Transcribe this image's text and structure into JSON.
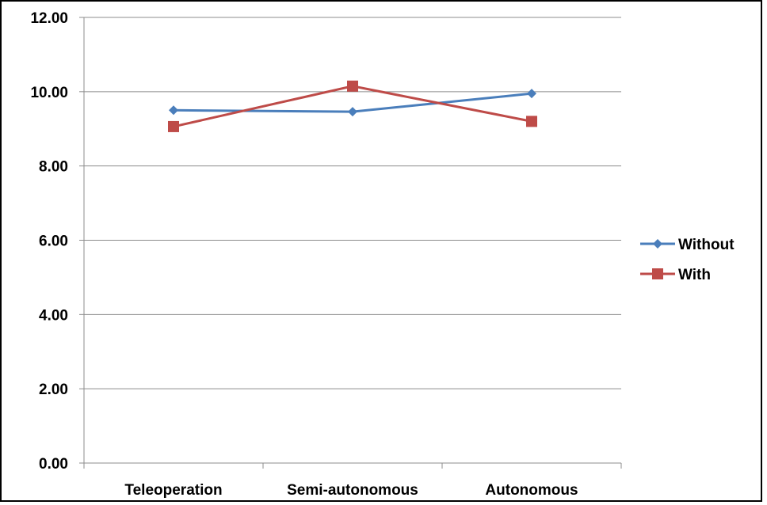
{
  "chart_data": {
    "type": "line",
    "categories": [
      "Teleoperation",
      "Semi-autonomous",
      "Autonomous"
    ],
    "series": [
      {
        "name": "Without",
        "values": [
          9.5,
          9.46,
          9.95
        ],
        "color": "#4a7ebb",
        "marker": "diamond"
      },
      {
        "name": "With",
        "values": [
          9.06,
          10.15,
          9.2
        ],
        "color": "#be4b48",
        "marker": "square"
      }
    ],
    "ylim": [
      0,
      12
    ],
    "yticks": [
      "0.00",
      "2.00",
      "4.00",
      "6.00",
      "8.00",
      "10.00",
      "12.00"
    ],
    "grid": true,
    "legend_position": "right",
    "title": "",
    "xlabel": "",
    "ylabel": ""
  }
}
